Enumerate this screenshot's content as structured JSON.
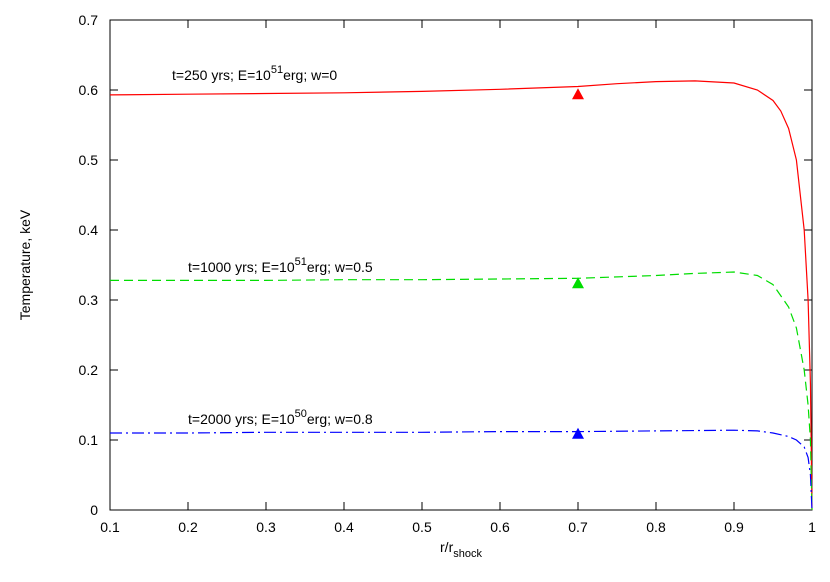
{
  "chart_data": {
    "type": "line",
    "xlabel": "r/r",
    "xlabel_sub": "shock",
    "ylabel": "Temperature, keV",
    "xlim": [
      0.1,
      1
    ],
    "ylim": [
      0,
      0.7
    ],
    "xticks": [
      0.1,
      0.2,
      0.3,
      0.4,
      0.5,
      0.6,
      0.7,
      0.8,
      0.9,
      1
    ],
    "yticks": [
      0,
      0.1,
      0.2,
      0.3,
      0.4,
      0.5,
      0.6,
      0.7
    ],
    "grid": false,
    "series": [
      {
        "label_parts": [
          "t=250 yrs; E=10",
          "51",
          "erg; w=0"
        ],
        "color": "#ff0000",
        "dash": "solid",
        "x": [
          0.1,
          0.2,
          0.3,
          0.4,
          0.5,
          0.6,
          0.7,
          0.75,
          0.8,
          0.85,
          0.9,
          0.93,
          0.95,
          0.96,
          0.97,
          0.98,
          0.99,
          0.995,
          0.998,
          1.0
        ],
        "values": [
          0.593,
          0.594,
          0.595,
          0.596,
          0.598,
          0.601,
          0.605,
          0.609,
          0.612,
          0.613,
          0.61,
          0.6,
          0.585,
          0.57,
          0.545,
          0.5,
          0.4,
          0.3,
          0.18,
          0
        ]
      },
      {
        "label_parts": [
          "t=1000 yrs; E=10",
          "51",
          "erg; w=0.5"
        ],
        "color": "#00dd00",
        "dash": "dashed",
        "x": [
          0.1,
          0.2,
          0.3,
          0.4,
          0.5,
          0.6,
          0.7,
          0.8,
          0.85,
          0.9,
          0.93,
          0.95,
          0.97,
          0.98,
          0.99,
          0.995,
          0.998,
          1.0
        ],
        "values": [
          0.328,
          0.328,
          0.328,
          0.329,
          0.329,
          0.33,
          0.331,
          0.335,
          0.338,
          0.34,
          0.335,
          0.322,
          0.29,
          0.26,
          0.2,
          0.15,
          0.1,
          0
        ]
      },
      {
        "label_parts": [
          "t=2000 yrs; E=10",
          "50",
          "erg; w=0.8"
        ],
        "color": "#0000ff",
        "dash": "dashdot",
        "x": [
          0.1,
          0.2,
          0.3,
          0.4,
          0.5,
          0.6,
          0.7,
          0.8,
          0.9,
          0.93,
          0.95,
          0.97,
          0.98,
          0.99,
          0.995,
          0.998,
          1.0
        ],
        "values": [
          0.11,
          0.11,
          0.111,
          0.111,
          0.111,
          0.112,
          0.112,
          0.113,
          0.114,
          0.113,
          0.11,
          0.105,
          0.1,
          0.09,
          0.075,
          0.05,
          0
        ]
      }
    ],
    "markers": {
      "x": [
        0.7,
        0.7,
        0.7
      ],
      "values": [
        0.594,
        0.324,
        0.109
      ],
      "colors": [
        "#ff0000",
        "#00dd00",
        "#0000ff"
      ]
    }
  }
}
